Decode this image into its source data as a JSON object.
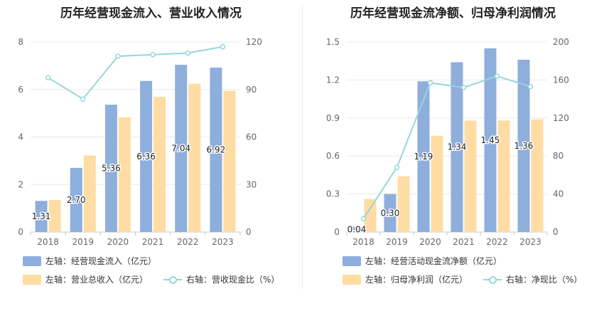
{
  "colors": {
    "bar_primary": "#8eaedc",
    "bar_secondary": "#ffdca3",
    "line": "#96d6dc",
    "grid": "#e8e8e8",
    "axis": "#c8c8c8"
  },
  "chart_data": [
    {
      "type": "bar",
      "title": "历年经营现金流入、营业收入情况",
      "categories": [
        "2018",
        "2019",
        "2020",
        "2021",
        "2022",
        "2023"
      ],
      "left_axis": {
        "min": 0,
        "max": 8,
        "ticks": [
          "0",
          "2",
          "4",
          "6",
          "8"
        ]
      },
      "right_axis": {
        "min": 0,
        "max": 120,
        "ticks": [
          "0",
          "30",
          "60",
          "90",
          "120"
        ]
      },
      "series": [
        {
          "name": "左轴：经营现金流入（亿元）",
          "kind": "bar",
          "axis": "left",
          "values": [
            1.31,
            2.7,
            5.36,
            6.36,
            7.04,
            6.92
          ],
          "labels": [
            "1.31",
            "2.70",
            "5.36",
            "6.36",
            "7.04",
            "6.92"
          ]
        },
        {
          "name": "左轴：营业总收入（亿元）",
          "kind": "bar",
          "axis": "left",
          "values": [
            1.35,
            3.22,
            4.83,
            5.69,
            6.24,
            5.94
          ]
        },
        {
          "name": "右轴：营收现金比（%）",
          "kind": "line",
          "axis": "right",
          "values": [
            97.5,
            84,
            111,
            112,
            113,
            117
          ]
        }
      ]
    },
    {
      "type": "bar",
      "title": "历年经营现金流净额、归母净利润情况",
      "categories": [
        "2018",
        "2019",
        "2020",
        "2021",
        "2022",
        "2023"
      ],
      "left_axis": {
        "min": 0,
        "max": 1.5,
        "ticks": [
          "0",
          "0.3",
          "0.6",
          "0.9",
          "1.2",
          "1.5"
        ]
      },
      "right_axis": {
        "min": 0,
        "max": 200,
        "ticks": [
          "0",
          "40",
          "80",
          "120",
          "160",
          "200"
        ]
      },
      "series": [
        {
          "name": "左轴：经营活动现金流净额（亿元）",
          "kind": "bar",
          "axis": "left",
          "values": [
            0.04,
            0.3,
            1.19,
            1.34,
            1.45,
            1.36
          ],
          "labels": [
            "0.04",
            "0.30",
            "1.19",
            "1.34",
            "1.45",
            "1.36"
          ]
        },
        {
          "name": "左轴：归母净利润（亿元）",
          "kind": "bar",
          "axis": "left",
          "values": [
            0.26,
            0.44,
            0.76,
            0.88,
            0.88,
            0.89
          ]
        },
        {
          "name": "右轴：净现比（%）",
          "kind": "line",
          "axis": "right",
          "values": [
            14,
            68,
            157,
            152,
            164,
            153
          ]
        }
      ]
    }
  ]
}
